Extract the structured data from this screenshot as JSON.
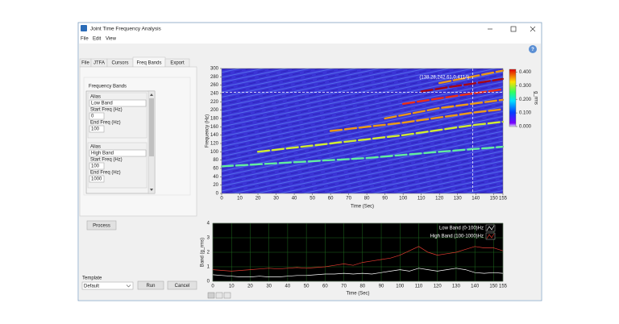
{
  "window": {
    "title": "Joint Time Frequency Analysis",
    "menu": [
      "File",
      "Edit",
      "View"
    ],
    "help": "?"
  },
  "tabs": [
    "File",
    "JTFA",
    "Cursors",
    "Freq Bands",
    "Export"
  ],
  "bands_panel": {
    "title": "Frequency Bands",
    "bands": [
      {
        "alias_label": "Alias",
        "alias": "Low Band",
        "start_label": "Start Freq (Hz)",
        "start": 0,
        "end_label": "End Freq (Hz)",
        "end": 100
      },
      {
        "alias_label": "Alias",
        "alias": "High Band",
        "start_label": "Start Freq (Hz)",
        "start": 100,
        "end_label": "End Freq (Hz)",
        "end": 1000
      }
    ]
  },
  "process_button": "Process",
  "template": {
    "label": "Template",
    "value": "Default"
  },
  "run_button": "Run",
  "cancel_button": "Cancel",
  "chart_data": [
    {
      "type": "spectrogram",
      "xlabel": "Time (Sec)",
      "ylabel": "Frequency (Hz)",
      "xlim": [
        0,
        155
      ],
      "ylim": [
        0,
        300
      ],
      "xticks": [
        0,
        10,
        20,
        30,
        40,
        50,
        60,
        70,
        80,
        90,
        100,
        110,
        120,
        130,
        140,
        150,
        155
      ],
      "yticks": [
        0,
        20,
        40,
        60,
        80,
        100,
        120,
        140,
        160,
        180,
        200,
        220,
        240,
        260,
        280,
        300
      ],
      "ridges": [
        {
          "x": [
            0,
            40,
            80,
            120,
            155
          ],
          "y": [
            65,
            75,
            85,
            100,
            112
          ],
          "value": 0.2
        },
        {
          "x": [
            20,
            60,
            100,
            140,
            155
          ],
          "y": [
            100,
            120,
            140,
            165,
            172
          ],
          "value": 0.25
        },
        {
          "x": [
            60,
            100,
            140,
            155
          ],
          "y": [
            150,
            170,
            195,
            202
          ],
          "value": 0.3
        },
        {
          "x": [
            90,
            120,
            155
          ],
          "y": [
            180,
            205,
            225
          ],
          "value": 0.3
        },
        {
          "x": [
            100,
            130,
            155
          ],
          "y": [
            215,
            235,
            250
          ],
          "value": 0.35
        },
        {
          "x": [
            110,
            140,
            155
          ],
          "y": [
            245,
            265,
            275
          ],
          "value": 0.4
        },
        {
          "x": [
            120,
            155
          ],
          "y": [
            265,
            295
          ],
          "value": 0.3
        }
      ],
      "colorbar": {
        "label": "g_rms",
        "zlim": [
          0,
          0.42
        ],
        "ticks": [
          {
            "value": 0,
            "label": "0.000"
          },
          {
            "value": 0.1,
            "label": "0.100"
          },
          {
            "value": 0.2,
            "label": "0.200"
          },
          {
            "value": 0.3,
            "label": "0.300"
          },
          {
            "value": 0.4,
            "label": "0.400"
          }
        ]
      },
      "cursor": {
        "x": 138.28,
        "y": 242.61,
        "label": "(138.28,242.61,0.4114)"
      }
    },
    {
      "type": "line",
      "xlabel": "Time (Sec)",
      "ylabel": "Band (g_rms)",
      "xlim": [
        0,
        155
      ],
      "ylim": [
        0,
        4
      ],
      "xticks": [
        0,
        10,
        20,
        30,
        40,
        50,
        60,
        70,
        80,
        90,
        100,
        110,
        120,
        130,
        140,
        150,
        155
      ],
      "yticks": [
        0,
        1,
        2,
        3,
        4
      ],
      "grid": true,
      "x": [
        0,
        5,
        10,
        15,
        20,
        25,
        30,
        35,
        40,
        45,
        50,
        55,
        60,
        65,
        70,
        75,
        80,
        85,
        90,
        95,
        100,
        105,
        110,
        115,
        120,
        125,
        130,
        135,
        140,
        145,
        150,
        155
      ],
      "series": [
        {
          "name": "Low Band (0-100)Hz",
          "color": "#ffffff",
          "values": [
            0.45,
            0.4,
            0.35,
            0.3,
            0.3,
            0.35,
            0.3,
            0.3,
            0.35,
            0.4,
            0.4,
            0.45,
            0.5,
            0.5,
            0.55,
            0.5,
            0.55,
            0.5,
            0.6,
            0.7,
            0.8,
            0.7,
            0.9,
            0.8,
            0.7,
            0.8,
            0.9,
            0.8,
            0.6,
            0.55,
            0.6,
            0.55
          ]
        },
        {
          "name": "High Band (100-1000)Hz",
          "color": "#e03a2f",
          "values": [
            0.8,
            0.75,
            0.7,
            0.75,
            0.8,
            0.85,
            0.9,
            0.85,
            0.9,
            0.95,
            0.9,
            0.95,
            1.0,
            1.1,
            1.2,
            1.1,
            1.3,
            1.4,
            1.5,
            1.6,
            1.8,
            2.1,
            2.4,
            2.0,
            1.8,
            1.9,
            2.0,
            2.2,
            2.4,
            2.3,
            2.3,
            2.1
          ]
        }
      ]
    }
  ]
}
